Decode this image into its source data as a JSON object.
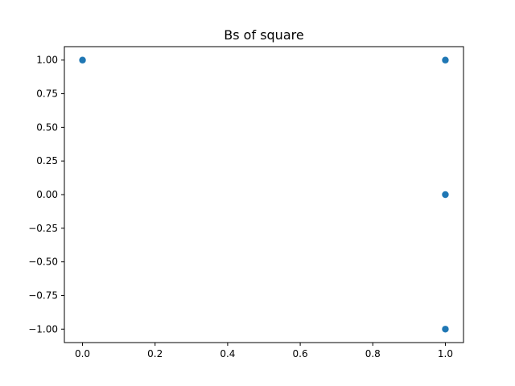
{
  "chart_data": {
    "type": "scatter",
    "title": "Bs of square",
    "xlabel": "",
    "ylabel": "",
    "xlim": [
      -0.05,
      1.05
    ],
    "ylim": [
      -1.1,
      1.1
    ],
    "x_ticks": [
      0.0,
      0.2,
      0.4,
      0.6,
      0.8,
      1.0
    ],
    "x_tick_labels": [
      "0.0",
      "0.2",
      "0.4",
      "0.6",
      "0.8",
      "1.0"
    ],
    "y_ticks": [
      1.0,
      0.75,
      0.5,
      0.25,
      0.0,
      -0.25,
      -0.5,
      -0.75,
      -1.0
    ],
    "y_tick_labels": [
      "1.00",
      "0.75",
      "0.50",
      "0.25",
      "0.00",
      "−0.25",
      "−0.50",
      "−0.75",
      "−1.00"
    ],
    "grid": false,
    "marker_color": "#1f77b4",
    "series": [
      {
        "points": [
          {
            "x": 0,
            "y": 1
          },
          {
            "x": 1,
            "y": 1
          },
          {
            "x": 1,
            "y": 0
          },
          {
            "x": 1,
            "y": -1
          }
        ]
      }
    ]
  }
}
